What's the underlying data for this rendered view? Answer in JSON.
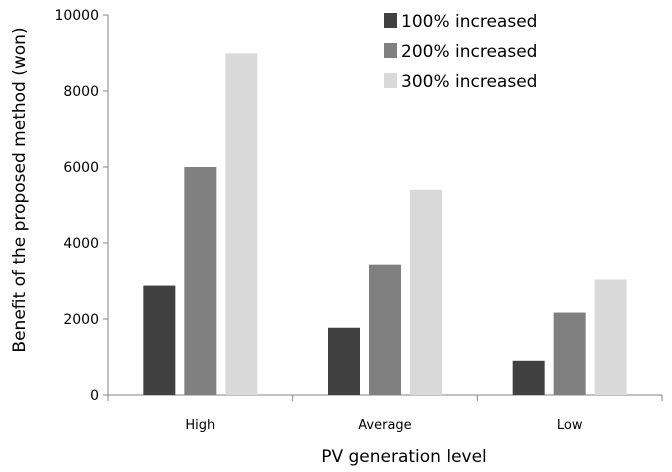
{
  "chart_data": {
    "type": "bar",
    "categories": [
      "High",
      "Average",
      "Low"
    ],
    "series": [
      {
        "name": "100%  increased",
        "color": "#404040",
        "values": [
          2880,
          1770,
          900
        ]
      },
      {
        "name": "200%  increased",
        "color": "#808080",
        "values": [
          6000,
          3430,
          2170
        ]
      },
      {
        "name": "300%  increased",
        "color": "#d9d9d9",
        "values": [
          8990,
          5400,
          3040
        ]
      }
    ],
    "title": "",
    "xlabel": "PV generation level",
    "ylabel": "Benefit of the proposed method (won)",
    "ylim": [
      0,
      10000
    ],
    "yticks": [
      "0",
      "2000",
      "4000",
      "6000",
      "8000",
      "10000"
    ],
    "grid": false,
    "legend_position": "top-right"
  }
}
